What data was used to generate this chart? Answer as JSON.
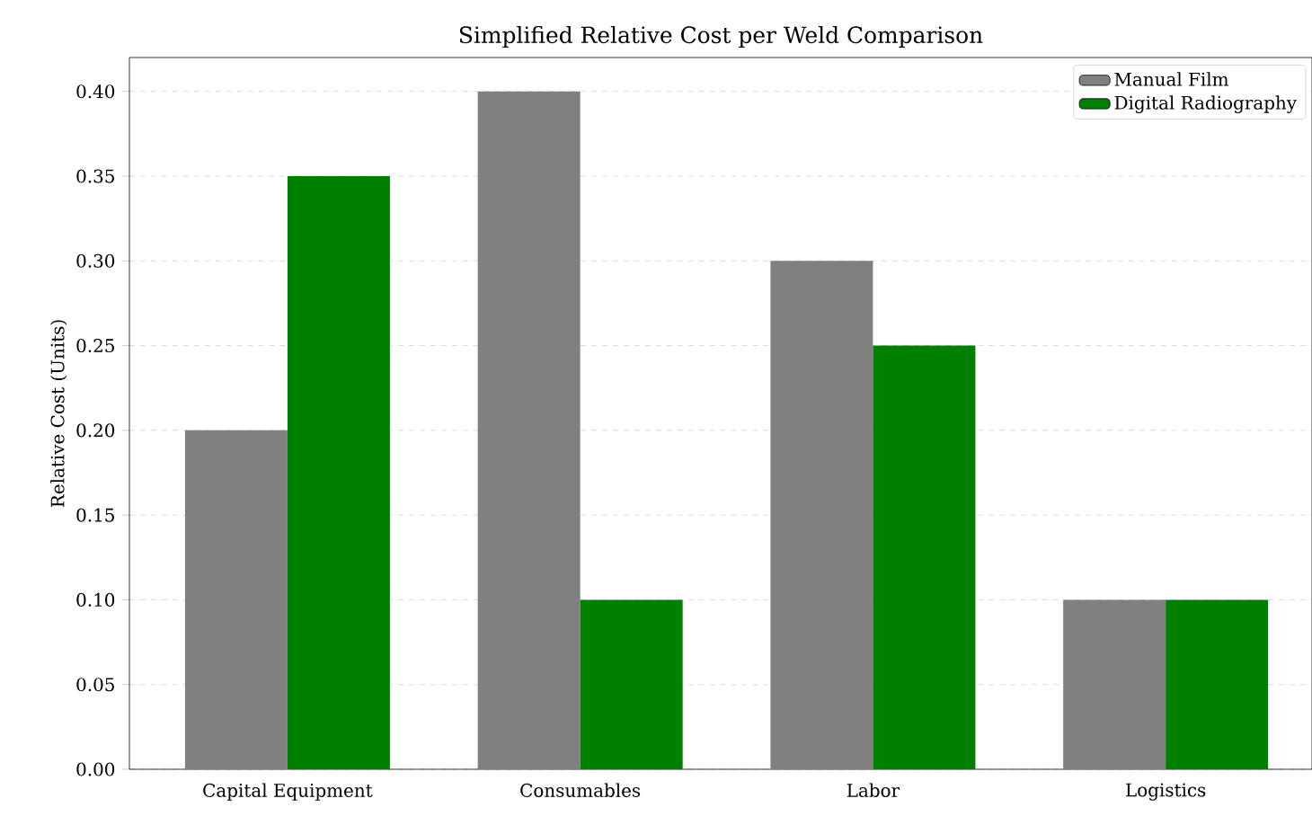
{
  "chart_data": {
    "type": "bar",
    "title": "Simplified Relative Cost per Weld Comparison",
    "ylabel": "Relative Cost (Units)",
    "categories": [
      "Capital Equipment",
      "Consumables",
      "Labor",
      "Logistics"
    ],
    "series": [
      {
        "name": "Manual Film",
        "color": "#808080",
        "values": [
          0.2,
          0.4,
          0.3,
          0.1
        ]
      },
      {
        "name": "Digital Radiography",
        "color": "#008000",
        "values": [
          0.35,
          0.1,
          0.25,
          0.1
        ]
      }
    ],
    "ylim": [
      0,
      0.42
    ],
    "yticks": [
      {
        "value": 0,
        "label": "0.00"
      },
      {
        "value": 0.05,
        "label": "0.05"
      },
      {
        "value": 0.1,
        "label": "0.10"
      },
      {
        "value": 0.15,
        "label": "0.15"
      },
      {
        "value": 0.2,
        "label": "0.20"
      },
      {
        "value": 0.25,
        "label": "0.25"
      },
      {
        "value": 0.3,
        "label": "0.30"
      },
      {
        "value": 0.35,
        "label": "0.35"
      },
      {
        "value": 0.4,
        "label": "0.40"
      }
    ],
    "grid": "y",
    "legend": "top right"
  }
}
